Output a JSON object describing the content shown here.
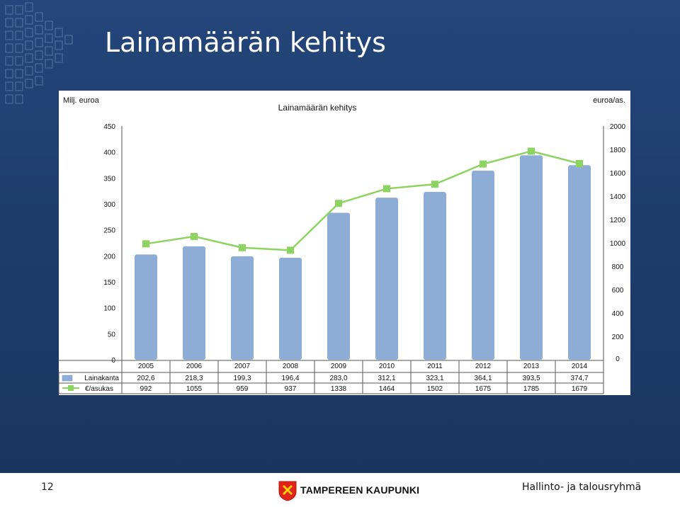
{
  "slide": {
    "title": "Lainamäärän kehitys",
    "page_number": "12",
    "organization": "TAMPEREEN KAUPUNKI",
    "department": "Hallinto- ja talousryhmä"
  },
  "chart_data": {
    "type": "bar",
    "title": "Lainamäärän kehitys",
    "y_left_label": "Milj. euroa",
    "y_right_label": "euroa/as.",
    "categories": [
      "2005",
      "2006",
      "2007",
      "2008",
      "2009",
      "2010",
      "2011",
      "2012",
      "2013",
      "2014"
    ],
    "y_left_ticks": [
      0,
      50,
      100,
      150,
      200,
      250,
      300,
      350,
      400,
      450
    ],
    "y_right_ticks": [
      0,
      200,
      400,
      600,
      800,
      1000,
      1200,
      1400,
      1600,
      1800,
      2000
    ],
    "ylim_left": [
      0,
      450
    ],
    "ylim_right": [
      0,
      2000
    ],
    "grid": false,
    "legend": "data-table",
    "series": [
      {
        "name": "Lainakanta",
        "type": "bar",
        "axis": "left",
        "color": "#8eadd6",
        "values": [
          202.6,
          218.3,
          199.3,
          196.4,
          283.0,
          312.1,
          323.1,
          364.1,
          393.5,
          374.7
        ],
        "labels": [
          "202,6",
          "218,3",
          "199,3",
          "196,4",
          "283,0",
          "312,1",
          "323,1",
          "364,1",
          "393,5",
          "374,7"
        ]
      },
      {
        "name": "€/asukas",
        "type": "line",
        "axis": "right",
        "color": "#8dd35f",
        "values": [
          992,
          1055,
          959,
          937,
          1338,
          1464,
          1502,
          1675,
          1785,
          1679
        ],
        "labels": [
          "992",
          "1055",
          "959",
          "937",
          "1338",
          "1464",
          "1502",
          "1675",
          "1785",
          "1679"
        ]
      }
    ]
  }
}
